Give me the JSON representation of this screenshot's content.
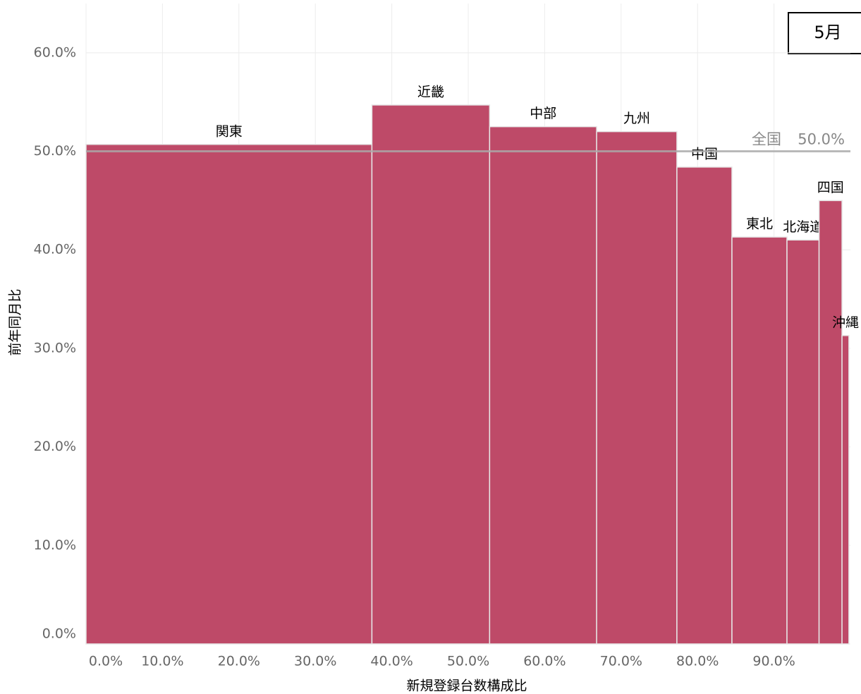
{
  "chart_data": {
    "type": "marimekko",
    "frame_label": "5月",
    "x_label": "新規登録台数構成比",
    "y_label": "前年同月比",
    "categories": [
      "関東",
      "近畿",
      "中部",
      "九州",
      "中国",
      "東北",
      "北海道",
      "四国",
      "沖縄"
    ],
    "widths": [
      37.4,
      15.4,
      14.0,
      10.5,
      7.2,
      7.2,
      4.2,
      3.0,
      0.9
    ],
    "values": [
      50.7,
      54.7,
      52.5,
      52.0,
      48.4,
      41.3,
      41.0,
      45.0,
      31.3
    ],
    "color": "#be4a68",
    "reference": {
      "label": "全国",
      "value": 50,
      "value_label": "50.0%",
      "color": "#aaaaaa"
    },
    "xlim": [
      0,
      100
    ],
    "ylim": [
      0,
      65
    ],
    "xticks": [
      {
        "value": 0,
        "label": "0.0%"
      },
      {
        "value": 10,
        "label": "10.0%"
      },
      {
        "value": 20,
        "label": "20.0%"
      },
      {
        "value": 30,
        "label": "30.0%"
      },
      {
        "value": 40,
        "label": "40.0%"
      },
      {
        "value": 50,
        "label": "50.0%"
      },
      {
        "value": 60,
        "label": "60.0%"
      },
      {
        "value": 70,
        "label": "70.0%"
      },
      {
        "value": 80,
        "label": "80.0%"
      },
      {
        "value": 90,
        "label": "90.0%"
      }
    ],
    "yticks": [
      {
        "value": 0,
        "label": "0.0%"
      },
      {
        "value": 10,
        "label": "10.0%"
      },
      {
        "value": 20,
        "label": "20.0%"
      },
      {
        "value": 30,
        "label": "30.0%"
      },
      {
        "value": 40,
        "label": "40.0%"
      },
      {
        "value": 50,
        "label": "50.0%"
      },
      {
        "value": 60,
        "label": "60.0%"
      }
    ],
    "grid": true
  }
}
